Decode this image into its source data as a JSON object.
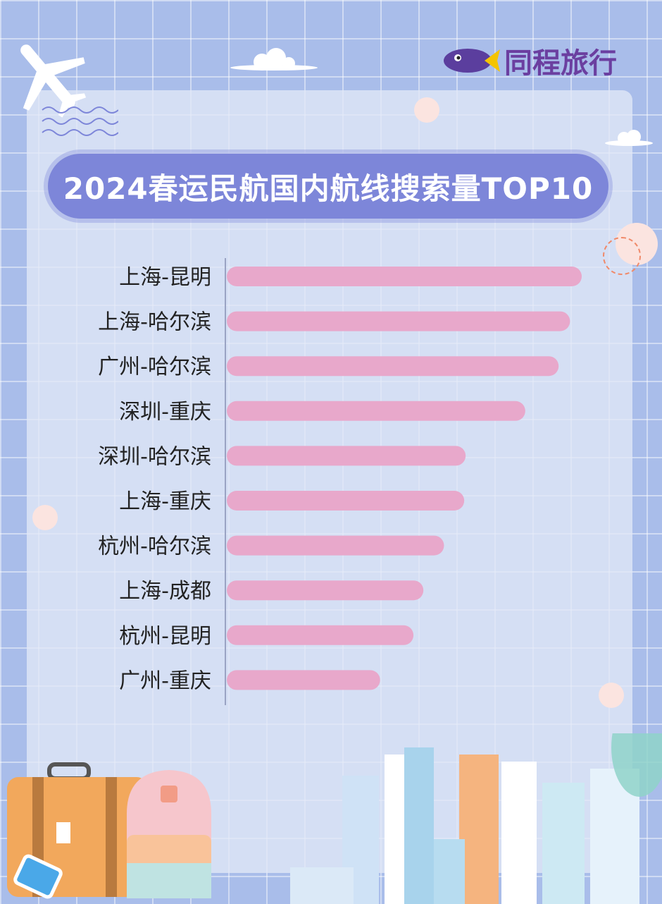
{
  "logo": {
    "text": "同程旅行",
    "icon": "fish-logo-icon",
    "color": "#6b3fa0"
  },
  "title": "2024春运民航国内航线搜索量TOP10",
  "colors": {
    "bar": "#e8a8cb",
    "banner": "#7d86d9",
    "background": "#a9bdea"
  },
  "chart_data": {
    "type": "bar",
    "orientation": "horizontal",
    "title": "2024春运民航国内航线搜索量TOP10",
    "categories": [
      "上海-昆明",
      "上海-哈尔滨",
      "广州-哈尔滨",
      "深圳-重庆",
      "深圳-哈尔滨",
      "上海-重庆",
      "杭州-哈尔滨",
      "上海-成都",
      "杭州-昆明",
      "广州-重庆"
    ],
    "values": [
      100,
      96.7,
      93.5,
      84.1,
      67.3,
      66.9,
      61.2,
      55.4,
      52.6,
      43.2
    ],
    "xlim": [
      0,
      100
    ],
    "grid": false,
    "value_labels_shown": false
  }
}
